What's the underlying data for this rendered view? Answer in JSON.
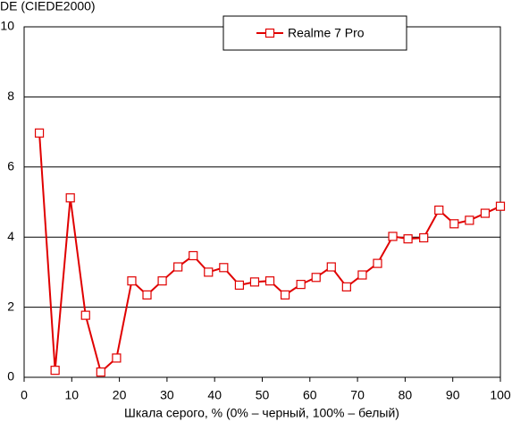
{
  "chart_data": {
    "type": "line",
    "y_label": "DE (CIEDE2000)",
    "x_label": "Шкала серого, % (0% – черный, 100% – белый)",
    "x": [
      3.2,
      6.5,
      9.7,
      12.9,
      16.1,
      19.4,
      22.6,
      25.8,
      29,
      32.3,
      35.5,
      38.7,
      41.9,
      45.2,
      48.4,
      51.6,
      54.8,
      58.1,
      61.3,
      64.5,
      67.7,
      71,
      74.2,
      77.4,
      80.6,
      83.9,
      87.1,
      90.3,
      93.5,
      96.8,
      100
    ],
    "series": [
      {
        "name": "Realme 7 Pro",
        "color": "#e00000",
        "values": [
          6.97,
          0.2,
          5.12,
          1.77,
          0.15,
          0.55,
          2.75,
          2.35,
          2.75,
          3.15,
          3.47,
          3.0,
          3.13,
          2.63,
          2.72,
          2.75,
          2.35,
          2.65,
          2.85,
          3.15,
          2.58,
          2.92,
          3.25,
          4.02,
          3.95,
          3.98,
          4.77,
          4.38,
          4.48,
          4.68,
          4.88
        ]
      }
    ],
    "xlim": [
      0,
      100
    ],
    "xticks": [
      0,
      10,
      20,
      30,
      40,
      50,
      60,
      70,
      80,
      90,
      100
    ],
    "ylim": [
      0,
      10
    ],
    "yticks": [
      0,
      2,
      4,
      6,
      8,
      10
    ],
    "grid": true,
    "legend": "top"
  }
}
